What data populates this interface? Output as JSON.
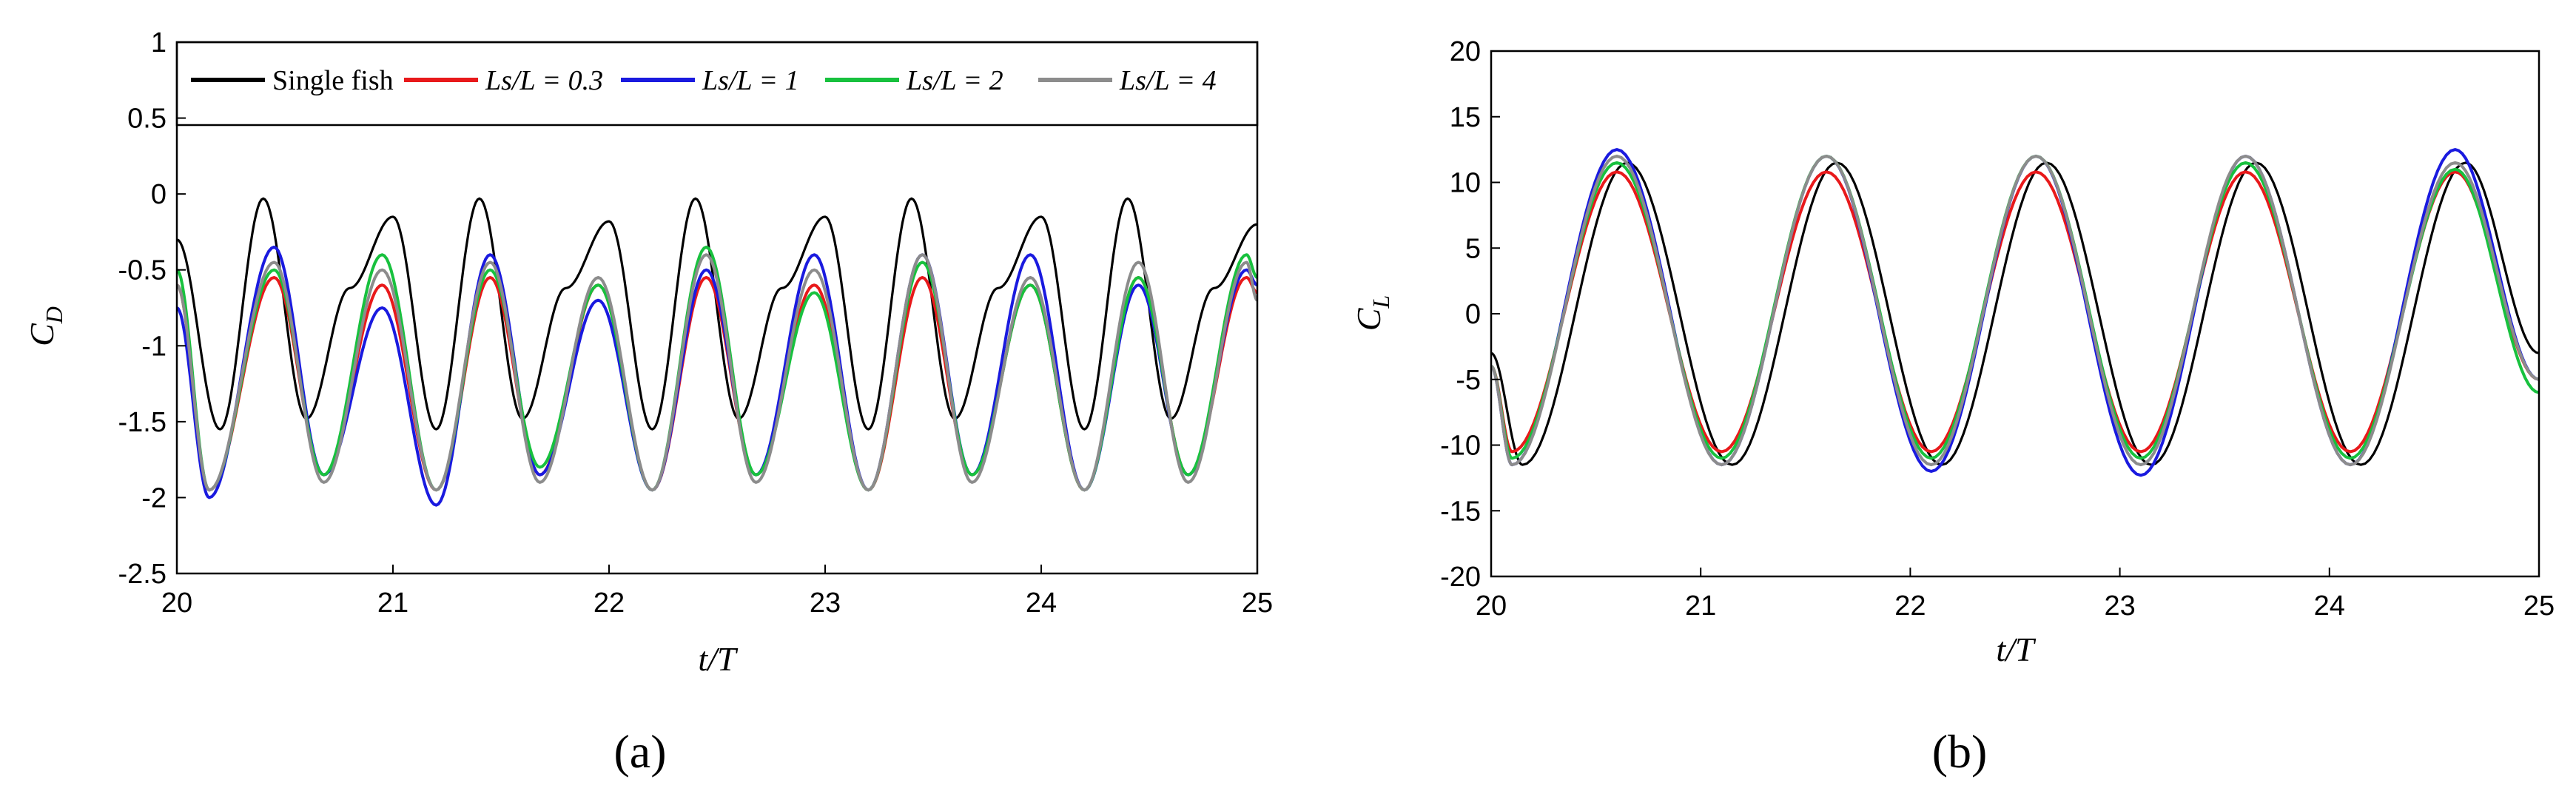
{
  "chart_data": [
    {
      "type": "line",
      "panel_label": "(a)",
      "xlabel": "t/T",
      "ylabel_main": "C",
      "ylabel_sub": "D",
      "xlim": [
        20,
        25
      ],
      "ylim": [
        -2.5,
        1
      ],
      "xticks": [
        20,
        21,
        22,
        23,
        24,
        25
      ],
      "yticks": [
        -2.5,
        -2,
        -1.5,
        -1,
        -0.5,
        0,
        0.5,
        1
      ],
      "xtick_labels": [
        "20",
        "21",
        "22",
        "23",
        "24",
        "25"
      ],
      "ytick_labels": [
        "-2.5",
        "-2",
        "-1.5",
        "-1",
        "-0.5",
        "0",
        "0.5",
        "1"
      ],
      "grid": false,
      "legend_position": "top, inside plot, full width",
      "series": [
        {
          "name": "Single fish",
          "color": "#000000",
          "x": [
            20.0,
            20.2,
            20.4,
            20.6,
            20.8,
            21.0,
            21.2,
            21.4,
            21.6,
            21.8,
            22.0,
            22.2,
            22.4,
            22.6,
            22.8,
            23.0,
            23.2,
            23.4,
            23.6,
            23.8,
            24.0,
            24.2,
            24.4,
            24.6,
            24.8,
            25.0
          ],
          "y": [
            -0.3,
            -1.55,
            -0.03,
            -1.48,
            -0.62,
            -0.15,
            -1.55,
            -0.03,
            -1.48,
            -0.62,
            -0.18,
            -1.55,
            -0.03,
            -1.48,
            -0.62,
            -0.15,
            -1.55,
            -0.03,
            -1.48,
            -0.62,
            -0.15,
            -1.55,
            -0.03,
            -1.48,
            -0.62,
            -0.2
          ]
        },
        {
          "name": "Ls/L = 0.3",
          "color": "#e8191b",
          "x": [
            20.0,
            20.15,
            20.45,
            20.68,
            20.95,
            21.2,
            21.45,
            21.68,
            21.95,
            22.2,
            22.45,
            22.68,
            22.95,
            23.2,
            23.45,
            23.68,
            23.95,
            24.2,
            24.45,
            24.68,
            24.95,
            25.0
          ],
          "y": [
            -0.6,
            -1.95,
            -0.55,
            -1.85,
            -0.6,
            -1.95,
            -0.55,
            -1.85,
            -0.6,
            -1.95,
            -0.55,
            -1.85,
            -0.6,
            -1.95,
            -0.55,
            -1.85,
            -0.6,
            -1.95,
            -0.55,
            -1.85,
            -0.55,
            -0.65
          ]
        },
        {
          "name": "Ls/L = 1",
          "color": "#1a1adf",
          "x": [
            20.0,
            20.15,
            20.45,
            20.68,
            20.95,
            21.2,
            21.45,
            21.68,
            21.95,
            22.2,
            22.45,
            22.68,
            22.95,
            23.2,
            23.45,
            23.68,
            23.95,
            24.2,
            24.45,
            24.68,
            24.95,
            25.0
          ],
          "y": [
            -0.75,
            -2.0,
            -0.35,
            -1.85,
            -0.75,
            -2.05,
            -0.4,
            -1.85,
            -0.7,
            -1.95,
            -0.5,
            -1.85,
            -0.4,
            -1.95,
            -0.4,
            -1.85,
            -0.4,
            -1.95,
            -0.6,
            -1.85,
            -0.5,
            -0.6
          ]
        },
        {
          "name": "Ls/L = 2",
          "color": "#18c13e",
          "x": [
            20.0,
            20.15,
            20.45,
            20.68,
            20.95,
            21.2,
            21.45,
            21.68,
            21.95,
            22.2,
            22.45,
            22.68,
            22.95,
            23.2,
            23.45,
            23.68,
            23.95,
            24.2,
            24.45,
            24.68,
            24.95,
            25.0
          ],
          "y": [
            -0.5,
            -1.95,
            -0.5,
            -1.85,
            -0.4,
            -1.95,
            -0.5,
            -1.8,
            -0.6,
            -1.95,
            -0.35,
            -1.85,
            -0.65,
            -1.95,
            -0.45,
            -1.85,
            -0.6,
            -1.95,
            -0.55,
            -1.85,
            -0.4,
            -0.55
          ]
        },
        {
          "name": "Ls/L = 4",
          "color": "#8c8c8c",
          "x": [
            20.0,
            20.15,
            20.45,
            20.68,
            20.95,
            21.2,
            21.45,
            21.68,
            21.95,
            22.2,
            22.45,
            22.68,
            22.95,
            23.2,
            23.45,
            23.68,
            23.95,
            24.2,
            24.45,
            24.68,
            24.95,
            25.0
          ],
          "y": [
            -0.6,
            -1.95,
            -0.45,
            -1.9,
            -0.5,
            -1.95,
            -0.45,
            -1.9,
            -0.55,
            -1.95,
            -0.4,
            -1.9,
            -0.5,
            -1.95,
            -0.4,
            -1.9,
            -0.55,
            -1.95,
            -0.45,
            -1.9,
            -0.45,
            -0.7
          ]
        }
      ],
      "legend_entries": [
        {
          "label": "Single fish",
          "italic": false,
          "color": "#000000"
        },
        {
          "label": "Ls/L = 0.3",
          "italic": true,
          "color": "#e8191b"
        },
        {
          "label": "Ls/L = 1",
          "italic": true,
          "color": "#1a1adf"
        },
        {
          "label": "Ls/L = 2",
          "italic": true,
          "color": "#18c13e"
        },
        {
          "label": "Ls/L = 4",
          "italic": true,
          "color": "#8c8c8c"
        }
      ]
    },
    {
      "type": "line",
      "panel_label": "(b)",
      "xlabel": "t/T",
      "ylabel_main": "C",
      "ylabel_sub": "L",
      "xlim": [
        20,
        25
      ],
      "ylim": [
        -20,
        20
      ],
      "xticks": [
        20,
        21,
        22,
        23,
        24,
        25
      ],
      "yticks": [
        -20,
        -15,
        -10,
        -5,
        0,
        5,
        10,
        15,
        20
      ],
      "xtick_labels": [
        "20",
        "21",
        "22",
        "23",
        "24",
        "25"
      ],
      "ytick_labels": [
        "-20",
        "-15",
        "-10",
        "-5",
        "0",
        "5",
        "10",
        "15",
        "20"
      ],
      "grid": false,
      "series": [
        {
          "name": "Single fish",
          "color": "#000000",
          "x": [
            20.0,
            20.15,
            20.65,
            21.15,
            21.65,
            22.15,
            22.65,
            23.15,
            23.65,
            24.15,
            24.65,
            25.0
          ],
          "y": [
            -3,
            -11.5,
            11.5,
            -11.5,
            11.5,
            -11.5,
            11.5,
            -11.5,
            11.5,
            -11.5,
            11.5,
            -3
          ]
        },
        {
          "name": "Ls/L = 0.3",
          "color": "#e8191b",
          "x": [
            20.0,
            20.1,
            20.6,
            21.1,
            21.6,
            22.1,
            22.6,
            23.1,
            23.6,
            24.1,
            24.6,
            25.0
          ],
          "y": [
            -4,
            -10.5,
            10.8,
            -10.5,
            10.8,
            -10.5,
            10.8,
            -10.5,
            10.8,
            -10.5,
            10.8,
            -5
          ]
        },
        {
          "name": "Ls/L = 1",
          "color": "#1a1adf",
          "x": [
            20.0,
            20.1,
            20.6,
            21.1,
            21.6,
            22.1,
            22.6,
            23.1,
            23.6,
            24.1,
            24.6,
            25.0
          ],
          "y": [
            -4,
            -11.5,
            12.5,
            -11.5,
            12.0,
            -12.0,
            12.0,
            -12.3,
            12.0,
            -11.5,
            12.5,
            -5
          ]
        },
        {
          "name": "Ls/L = 2",
          "color": "#18c13e",
          "x": [
            20.0,
            20.1,
            20.6,
            21.1,
            21.6,
            22.1,
            22.6,
            23.1,
            23.6,
            24.1,
            24.6,
            25.0
          ],
          "y": [
            -4,
            -11.0,
            11.5,
            -11.0,
            12.0,
            -11.0,
            12.0,
            -11.0,
            11.5,
            -11.0,
            11.0,
            -6
          ]
        },
        {
          "name": "Ls/L = 4",
          "color": "#8c8c8c",
          "x": [
            20.0,
            20.1,
            20.6,
            21.1,
            21.6,
            22.1,
            22.6,
            23.1,
            23.6,
            24.1,
            24.6,
            25.0
          ],
          "y": [
            -4,
            -11.5,
            12.0,
            -11.5,
            12.0,
            -11.5,
            12.0,
            -11.5,
            12.0,
            -11.5,
            11.5,
            -5
          ]
        }
      ]
    }
  ]
}
